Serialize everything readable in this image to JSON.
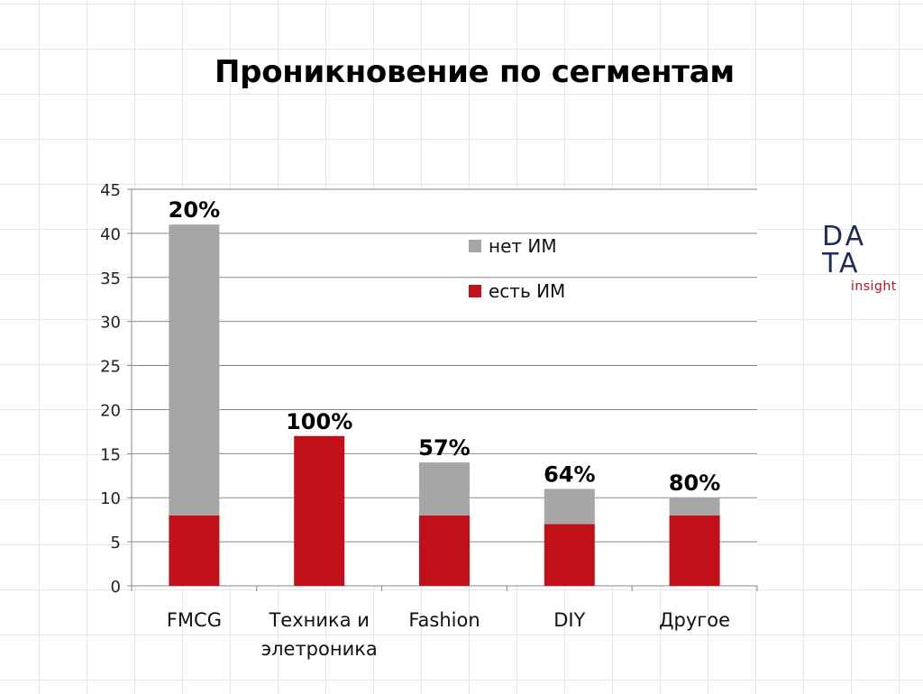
{
  "slide": {
    "title": "Проникновение по сегментам"
  },
  "logo": {
    "line1": "DA",
    "line2": "TA",
    "tagline": "insight"
  },
  "chart_data": {
    "type": "bar",
    "stacked": true,
    "title": "",
    "xlabel": "",
    "ylabel": "",
    "ylim": [
      0,
      45
    ],
    "ytick_step": 5,
    "grid": true,
    "legend_position": "top-right",
    "categories": [
      [
        "FMCG"
      ],
      [
        "Техника и",
        "элетроника"
      ],
      [
        "Fashion"
      ],
      [
        "DIY"
      ],
      [
        "Другое"
      ]
    ],
    "series": [
      {
        "name": "есть ИМ",
        "color": "#c0101a",
        "values": [
          8,
          17,
          8,
          7,
          8
        ]
      },
      {
        "name": "нет ИМ",
        "color": "#a6a6a6",
        "values": [
          33,
          0,
          6,
          4,
          2
        ]
      }
    ],
    "data_labels": [
      "20%",
      "100%",
      "57%",
      "64%",
      "80%"
    ],
    "legend_order": [
      "нет ИМ",
      "есть ИМ"
    ]
  }
}
